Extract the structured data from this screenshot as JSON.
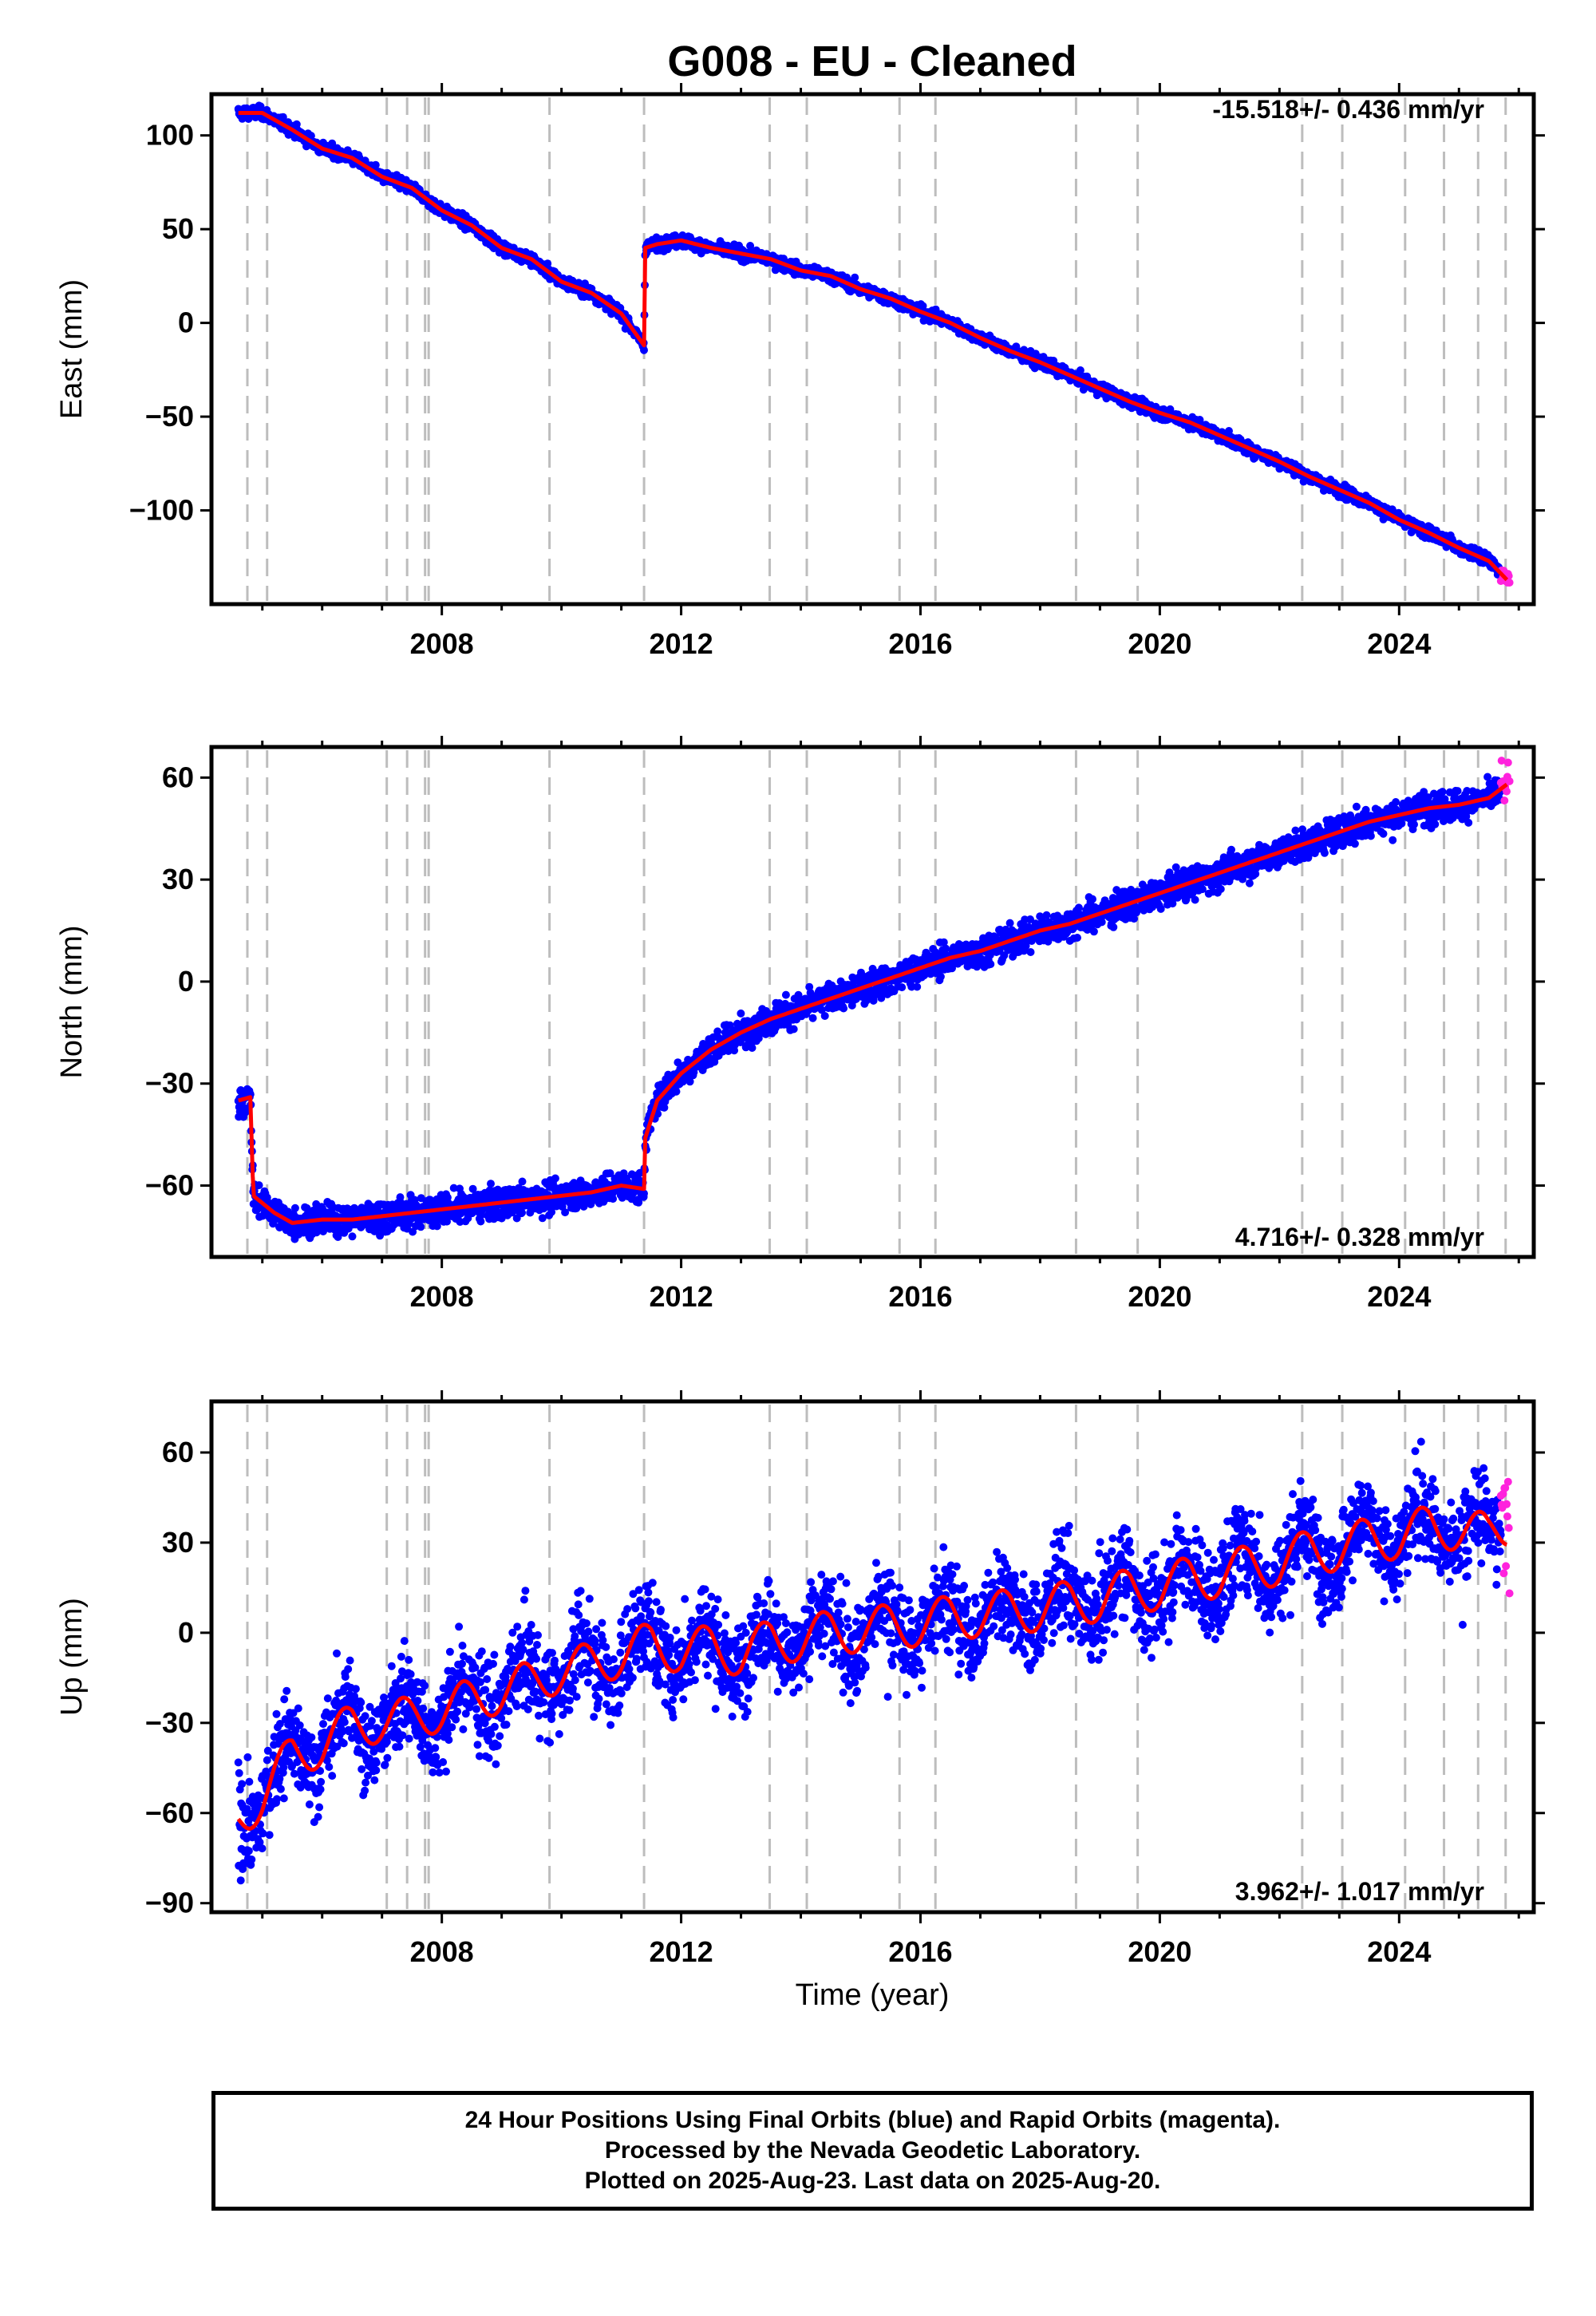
{
  "title": "G008  - EU - Cleaned",
  "colors": {
    "final": "#0000ff",
    "rapid": "#ff22dd",
    "model": "#ff0000",
    "event": "#bdbdbd"
  },
  "event_lines": [
    2004.75,
    2005.08,
    2007.08,
    2007.42,
    2007.72,
    2007.78,
    2009.8,
    2011.38,
    2013.48,
    2014.1,
    2015.65,
    2016.25,
    2018.6,
    2019.63,
    2022.38,
    2023.05,
    2024.1,
    2024.75,
    2025.32,
    2025.78
  ],
  "x_axis": {
    "label": "Time (year)",
    "ticks": [
      "2008",
      "2012",
      "2016",
      "2020",
      "2024"
    ],
    "range": [
      2004.15,
      2026.25
    ]
  },
  "panels": [
    {
      "id": "east",
      "ylabel": "East (mm)",
      "rate": "-15.518+/- 0.436 mm/yr",
      "yticks": [
        "100",
        "50",
        "0",
        "−50",
        "−100"
      ]
    },
    {
      "id": "north",
      "ylabel": "North (mm)",
      "rate": "4.716+/- 0.328 mm/yr",
      "yticks": [
        "60",
        "30",
        "0",
        "−30",
        "−60"
      ]
    },
    {
      "id": "up",
      "ylabel": "Up (mm)",
      "rate": "3.962+/- 1.017 mm/yr",
      "yticks": [
        "60",
        "30",
        "0",
        "−30",
        "−60",
        "−90"
      ]
    }
  ],
  "footer": {
    "line1": "24 Hour Positions Using Final Orbits (blue) and Rapid Orbits (magenta).",
    "line2": "Processed by the Nevada Geodetic Laboratory.",
    "line3": "Plotted on 2025-Aug-23. Last data on 2025-Aug-20."
  },
  "chart_data": [
    {
      "type": "scatter",
      "title": "G008  - EU - Cleaned",
      "ylabel": "East (mm)",
      "xlabel": "",
      "xlim": [
        2004.15,
        2026.25
      ],
      "ylim": [
        -150,
        122
      ],
      "yticks": [
        100,
        50,
        0,
        -50,
        -100
      ],
      "rate_label": "-15.518+/- 0.436 mm/yr",
      "series": [
        {
          "x": [
            2004.6,
            2005.0,
            2005.5,
            2006.0,
            2006.5,
            2007.0,
            2007.5,
            2008.0,
            2008.5,
            2009.0,
            2009.5,
            2010.0,
            2010.5,
            2011.0,
            2011.38,
            2011.4,
            2011.6,
            2012.0,
            2012.5,
            2013.0,
            2013.5,
            2014.0,
            2014.5,
            2015.0,
            2015.5,
            2016.0,
            2016.5,
            2017.0,
            2017.5,
            2018.0,
            2018.5,
            2019.0,
            2019.5,
            2020.0,
            2020.5,
            2021.0,
            2021.5,
            2022.0,
            2022.5,
            2023.0,
            2023.5,
            2024.0,
            2024.5,
            2025.0,
            2025.5,
            2025.8
          ],
          "y": [
            112,
            112,
            103,
            93,
            88,
            78,
            72,
            60,
            52,
            40,
            34,
            22,
            16,
            5,
            -12,
            40,
            42,
            44,
            40,
            37,
            34,
            28,
            25,
            18,
            13,
            6,
            0,
            -8,
            -15,
            -21,
            -28,
            -35,
            -42,
            -48,
            -53,
            -60,
            -67,
            -74,
            -82,
            -89,
            -96,
            -105,
            -112,
            -120,
            -127,
            -137
          ]
        }
      ]
    },
    {
      "type": "scatter",
      "ylabel": "North (mm)",
      "xlabel": "",
      "xlim": [
        2004.15,
        2026.25
      ],
      "ylim": [
        -81,
        69
      ],
      "yticks": [
        60,
        30,
        0,
        -30,
        -60
      ],
      "rate_label": "4.716+/- 0.328 mm/yr",
      "series": [
        {
          "x": [
            2004.6,
            2004.8,
            2004.85,
            2005.2,
            2005.5,
            2006.0,
            2006.5,
            2007.0,
            2007.5,
            2008.0,
            2008.5,
            2009.0,
            2009.5,
            2010.0,
            2010.5,
            2011.0,
            2011.38,
            2011.4,
            2011.6,
            2012.0,
            2012.5,
            2013.0,
            2013.5,
            2014.0,
            2014.5,
            2015.0,
            2015.5,
            2016.0,
            2016.5,
            2017.0,
            2017.5,
            2018.0,
            2018.5,
            2019.0,
            2019.5,
            2020.0,
            2020.5,
            2021.0,
            2021.5,
            2022.0,
            2022.5,
            2023.0,
            2023.5,
            2024.0,
            2024.5,
            2025.0,
            2025.5,
            2025.8
          ],
          "y": [
            -35,
            -34,
            -63,
            -68,
            -71,
            -70,
            -70,
            -69,
            -68,
            -67,
            -66,
            -65,
            -64,
            -63,
            -62,
            -60,
            -61,
            -46,
            -35,
            -27,
            -20,
            -15,
            -11,
            -8,
            -5,
            -2,
            1,
            4,
            7,
            9,
            12,
            15,
            17,
            20,
            23,
            26,
            29,
            32,
            35,
            38,
            41,
            44,
            47,
            49,
            51,
            52,
            54,
            58
          ]
        }
      ]
    },
    {
      "type": "scatter",
      "ylabel": "Up (mm)",
      "xlabel": "Time (year)",
      "xlim": [
        2004.15,
        2026.25
      ],
      "ylim": [
        -93,
        77
      ],
      "yticks": [
        60,
        30,
        0,
        -30,
        -60,
        -90
      ],
      "rate_label": "3.962+/- 1.017 mm/yr",
      "series": [
        {
          "x": [
            2004.6,
            2005.0,
            2005.5,
            2006.0,
            2006.5,
            2007.0,
            2007.5,
            2008.0,
            2008.5,
            2009.0,
            2009.5,
            2010.0,
            2010.5,
            2011.0,
            2011.5,
            2012.0,
            2012.5,
            2013.0,
            2013.5,
            2014.0,
            2014.5,
            2015.0,
            2015.5,
            2016.0,
            2016.5,
            2017.0,
            2017.5,
            2018.0,
            2018.5,
            2019.0,
            2019.5,
            2020.0,
            2020.5,
            2021.0,
            2021.5,
            2022.0,
            2022.5,
            2023.0,
            2023.5,
            2024.0,
            2024.5,
            2025.0,
            2025.5,
            2025.8
          ],
          "y": [
            -62,
            -55,
            -40,
            -38,
            -30,
            -30,
            -28,
            -26,
            -22,
            -20,
            -16,
            -13,
            -10,
            -8,
            -3,
            -7,
            -4,
            -8,
            -2,
            -3,
            1,
            0,
            3,
            2,
            6,
            5,
            8,
            7,
            11,
            10,
            15,
            14,
            19,
            18,
            23,
            22,
            28,
            27,
            32,
            31,
            36,
            34,
            33,
            36
          ]
        }
      ]
    }
  ]
}
